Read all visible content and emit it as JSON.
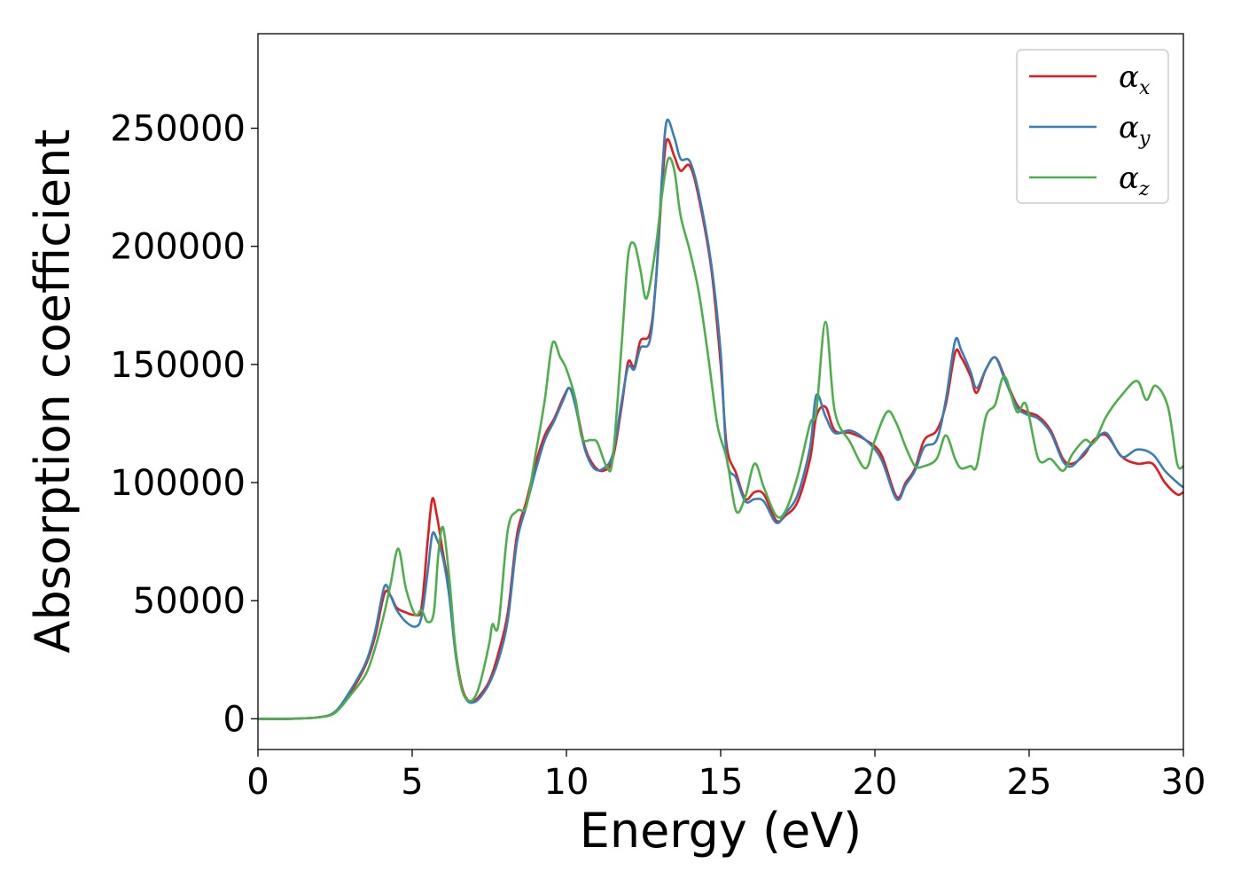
{
  "chart_data": {
    "type": "line",
    "title": "",
    "xlabel": "Energy (eV)",
    "ylabel": "Absorption coefficient",
    "xlim": [
      0,
      30
    ],
    "ylim": [
      -13000,
      290000
    ],
    "xticks": [
      0,
      5,
      10,
      15,
      20,
      25,
      30
    ],
    "yticks": [
      0,
      50000,
      100000,
      150000,
      200000,
      250000
    ],
    "grid": false,
    "legend_position": "top-right",
    "series": [
      {
        "name": "αx",
        "legend_symbol": "α",
        "legend_subscript": "x",
        "color": "#e41a1c",
        "points": [
          [
            0,
            0
          ],
          [
            1,
            0
          ],
          [
            2,
            700
          ],
          [
            2.5,
            3000
          ],
          [
            3,
            11000
          ],
          [
            3.5,
            23000
          ],
          [
            3.8,
            35000
          ],
          [
            4.1,
            53000
          ],
          [
            4.3,
            52000
          ],
          [
            4.5,
            47000
          ],
          [
            4.8,
            45000
          ],
          [
            5.1,
            44000
          ],
          [
            5.3,
            47000
          ],
          [
            5.5,
            75000
          ],
          [
            5.65,
            93000
          ],
          [
            5.8,
            86000
          ],
          [
            6,
            70000
          ],
          [
            6.2,
            55000
          ],
          [
            6.4,
            30000
          ],
          [
            6.6,
            14000
          ],
          [
            6.8,
            8000
          ],
          [
            7,
            7500
          ],
          [
            7.2,
            10000
          ],
          [
            7.5,
            16000
          ],
          [
            7.8,
            28000
          ],
          [
            8.1,
            45000
          ],
          [
            8.4,
            78000
          ],
          [
            8.7,
            92000
          ],
          [
            9,
            108000
          ],
          [
            9.3,
            120000
          ],
          [
            9.6,
            127000
          ],
          [
            9.9,
            136000
          ],
          [
            10.1,
            140000
          ],
          [
            10.3,
            133000
          ],
          [
            10.6,
            115000
          ],
          [
            10.9,
            107000
          ],
          [
            11.2,
            105000
          ],
          [
            11.5,
            110000
          ],
          [
            11.8,
            133000
          ],
          [
            12,
            151000
          ],
          [
            12.2,
            149000
          ],
          [
            12.4,
            160000
          ],
          [
            12.7,
            163000
          ],
          [
            12.9,
            185000
          ],
          [
            13.1,
            225000
          ],
          [
            13.25,
            245000
          ],
          [
            13.5,
            238000
          ],
          [
            13.7,
            232000
          ],
          [
            14.0,
            234000
          ],
          [
            14.3,
            220000
          ],
          [
            14.7,
            190000
          ],
          [
            15.0,
            150000
          ],
          [
            15.2,
            115000
          ],
          [
            15.5,
            104000
          ],
          [
            15.8,
            93000
          ],
          [
            16.1,
            96000
          ],
          [
            16.4,
            95000
          ],
          [
            16.8,
            84000
          ],
          [
            17.1,
            86000
          ],
          [
            17.5,
            92000
          ],
          [
            17.9,
            110000
          ],
          [
            18.1,
            128000
          ],
          [
            18.4,
            132000
          ],
          [
            18.7,
            122000
          ],
          [
            19.2,
            121000
          ],
          [
            19.7,
            118000
          ],
          [
            20.2,
            112000
          ],
          [
            20.7,
            94000
          ],
          [
            21.0,
            100000
          ],
          [
            21.3,
            106000
          ],
          [
            21.6,
            118000
          ],
          [
            22.0,
            122000
          ],
          [
            22.3,
            133000
          ],
          [
            22.6,
            155000
          ],
          [
            22.8,
            153000
          ],
          [
            23.1,
            145000
          ],
          [
            23.3,
            138000
          ],
          [
            23.6,
            148000
          ],
          [
            23.9,
            153000
          ],
          [
            24.2,
            145000
          ],
          [
            24.6,
            133000
          ],
          [
            24.9,
            130000
          ],
          [
            25.3,
            128000
          ],
          [
            25.7,
            122000
          ],
          [
            26.1,
            110000
          ],
          [
            26.4,
            108000
          ],
          [
            26.8,
            112000
          ],
          [
            27.1,
            118000
          ],
          [
            27.5,
            120000
          ],
          [
            28.0,
            111000
          ],
          [
            28.5,
            108000
          ],
          [
            29.0,
            108000
          ],
          [
            29.4,
            100000
          ],
          [
            29.8,
            95000
          ],
          [
            30.0,
            96000
          ]
        ]
      },
      {
        "name": "αy",
        "legend_symbol": "α",
        "legend_subscript": "y",
        "color": "#377eb8",
        "points": [
          [
            0,
            0
          ],
          [
            1,
            0
          ],
          [
            2,
            700
          ],
          [
            2.5,
            3000
          ],
          [
            3,
            12000
          ],
          [
            3.5,
            24000
          ],
          [
            3.8,
            37000
          ],
          [
            4.1,
            56000
          ],
          [
            4.3,
            52000
          ],
          [
            4.5,
            46000
          ],
          [
            4.8,
            41000
          ],
          [
            5.1,
            39000
          ],
          [
            5.3,
            43000
          ],
          [
            5.5,
            62000
          ],
          [
            5.65,
            78000
          ],
          [
            5.8,
            76000
          ],
          [
            6,
            68000
          ],
          [
            6.2,
            52000
          ],
          [
            6.4,
            28000
          ],
          [
            6.6,
            13000
          ],
          [
            6.8,
            7500
          ],
          [
            7,
            7000
          ],
          [
            7.2,
            9000
          ],
          [
            7.5,
            15000
          ],
          [
            7.8,
            25000
          ],
          [
            8.1,
            42000
          ],
          [
            8.4,
            75000
          ],
          [
            8.7,
            90000
          ],
          [
            9,
            105000
          ],
          [
            9.3,
            118000
          ],
          [
            9.6,
            126000
          ],
          [
            9.9,
            135000
          ],
          [
            10.1,
            140000
          ],
          [
            10.3,
            132000
          ],
          [
            10.6,
            114000
          ],
          [
            10.9,
            106000
          ],
          [
            11.2,
            106000
          ],
          [
            11.5,
            112000
          ],
          [
            11.8,
            135000
          ],
          [
            12,
            149000
          ],
          [
            12.2,
            148000
          ],
          [
            12.4,
            157000
          ],
          [
            12.7,
            160000
          ],
          [
            12.9,
            185000
          ],
          [
            13.1,
            230000
          ],
          [
            13.25,
            253000
          ],
          [
            13.5,
            246000
          ],
          [
            13.7,
            237000
          ],
          [
            14.0,
            236000
          ],
          [
            14.3,
            222000
          ],
          [
            14.7,
            192000
          ],
          [
            15.0,
            155000
          ],
          [
            15.2,
            110000
          ],
          [
            15.5,
            102000
          ],
          [
            15.8,
            92000
          ],
          [
            16.1,
            93000
          ],
          [
            16.4,
            92000
          ],
          [
            16.8,
            83000
          ],
          [
            17.1,
            87000
          ],
          [
            17.5,
            95000
          ],
          [
            17.9,
            115000
          ],
          [
            18.1,
            137000
          ],
          [
            18.4,
            128000
          ],
          [
            18.7,
            121000
          ],
          [
            19.2,
            122000
          ],
          [
            19.7,
            118000
          ],
          [
            20.2,
            110000
          ],
          [
            20.7,
            93000
          ],
          [
            21.0,
            99000
          ],
          [
            21.3,
            105000
          ],
          [
            21.6,
            115000
          ],
          [
            22.0,
            118000
          ],
          [
            22.3,
            135000
          ],
          [
            22.6,
            160000
          ],
          [
            22.8,
            156000
          ],
          [
            23.1,
            147000
          ],
          [
            23.3,
            140000
          ],
          [
            23.6,
            148000
          ],
          [
            23.9,
            153000
          ],
          [
            24.2,
            144000
          ],
          [
            24.6,
            132000
          ],
          [
            24.9,
            129000
          ],
          [
            25.3,
            127000
          ],
          [
            25.7,
            121000
          ],
          [
            26.1,
            109000
          ],
          [
            26.4,
            107000
          ],
          [
            26.8,
            113000
          ],
          [
            27.1,
            117000
          ],
          [
            27.5,
            121000
          ],
          [
            28.0,
            111000
          ],
          [
            28.5,
            114000
          ],
          [
            29.0,
            112000
          ],
          [
            29.4,
            105000
          ],
          [
            29.8,
            100000
          ],
          [
            30.0,
            98000
          ]
        ]
      },
      {
        "name": "αz",
        "legend_symbol": "α",
        "legend_subscript": "z",
        "color": "#4daf4a",
        "points": [
          [
            0,
            0
          ],
          [
            1,
            0
          ],
          [
            2,
            700
          ],
          [
            2.5,
            2500
          ],
          [
            3,
            10000
          ],
          [
            3.5,
            19000
          ],
          [
            3.8,
            30000
          ],
          [
            4.1,
            45000
          ],
          [
            4.3,
            57000
          ],
          [
            4.55,
            72000
          ],
          [
            4.8,
            55000
          ],
          [
            5.1,
            44000
          ],
          [
            5.3,
            46000
          ],
          [
            5.5,
            41000
          ],
          [
            5.7,
            45000
          ],
          [
            5.85,
            70000
          ],
          [
            6.0,
            81000
          ],
          [
            6.2,
            60000
          ],
          [
            6.4,
            30000
          ],
          [
            6.6,
            13000
          ],
          [
            6.8,
            8000
          ],
          [
            7,
            8500
          ],
          [
            7.2,
            15000
          ],
          [
            7.5,
            32000
          ],
          [
            7.6,
            40000
          ],
          [
            7.8,
            40000
          ],
          [
            8.1,
            80000
          ],
          [
            8.4,
            88000
          ],
          [
            8.7,
            90000
          ],
          [
            9,
            112000
          ],
          [
            9.3,
            135000
          ],
          [
            9.55,
            159000
          ],
          [
            9.8,
            153000
          ],
          [
            10.0,
            148000
          ],
          [
            10.3,
            135000
          ],
          [
            10.5,
            119000
          ],
          [
            10.8,
            118000
          ],
          [
            11.0,
            117000
          ],
          [
            11.3,
            107000
          ],
          [
            11.5,
            110000
          ],
          [
            11.8,
            160000
          ],
          [
            12,
            196000
          ],
          [
            12.2,
            201000
          ],
          [
            12.4,
            190000
          ],
          [
            12.6,
            178000
          ],
          [
            12.9,
            200000
          ],
          [
            13.1,
            222000
          ],
          [
            13.3,
            237000
          ],
          [
            13.5,
            232000
          ],
          [
            13.7,
            213000
          ],
          [
            14.0,
            198000
          ],
          [
            14.3,
            180000
          ],
          [
            14.6,
            153000
          ],
          [
            14.9,
            124000
          ],
          [
            15.2,
            110000
          ],
          [
            15.5,
            88000
          ],
          [
            15.8,
            94000
          ],
          [
            16.1,
            108000
          ],
          [
            16.4,
            98000
          ],
          [
            16.8,
            86000
          ],
          [
            17.1,
            88000
          ],
          [
            17.5,
            103000
          ],
          [
            17.9,
            125000
          ],
          [
            18.1,
            130000
          ],
          [
            18.4,
            168000
          ],
          [
            18.7,
            130000
          ],
          [
            19.2,
            117000
          ],
          [
            19.7,
            106000
          ],
          [
            20.0,
            118000
          ],
          [
            20.4,
            130000
          ],
          [
            20.7,
            125000
          ],
          [
            21.0,
            115000
          ],
          [
            21.3,
            107000
          ],
          [
            21.6,
            107000
          ],
          [
            22.0,
            110000
          ],
          [
            22.3,
            120000
          ],
          [
            22.6,
            110000
          ],
          [
            22.8,
            106000
          ],
          [
            23.1,
            107000
          ],
          [
            23.3,
            107000
          ],
          [
            23.6,
            128000
          ],
          [
            23.9,
            133000
          ],
          [
            24.2,
            145000
          ],
          [
            24.6,
            130000
          ],
          [
            24.9,
            133000
          ],
          [
            25.3,
            110000
          ],
          [
            25.7,
            110000
          ],
          [
            26.1,
            105000
          ],
          [
            26.4,
            112000
          ],
          [
            26.8,
            118000
          ],
          [
            27.1,
            117000
          ],
          [
            27.5,
            128000
          ],
          [
            28.0,
            137000
          ],
          [
            28.5,
            143000
          ],
          [
            28.8,
            135000
          ],
          [
            29.1,
            141000
          ],
          [
            29.5,
            132000
          ],
          [
            29.8,
            108000
          ],
          [
            30.0,
            107000
          ]
        ]
      }
    ]
  }
}
